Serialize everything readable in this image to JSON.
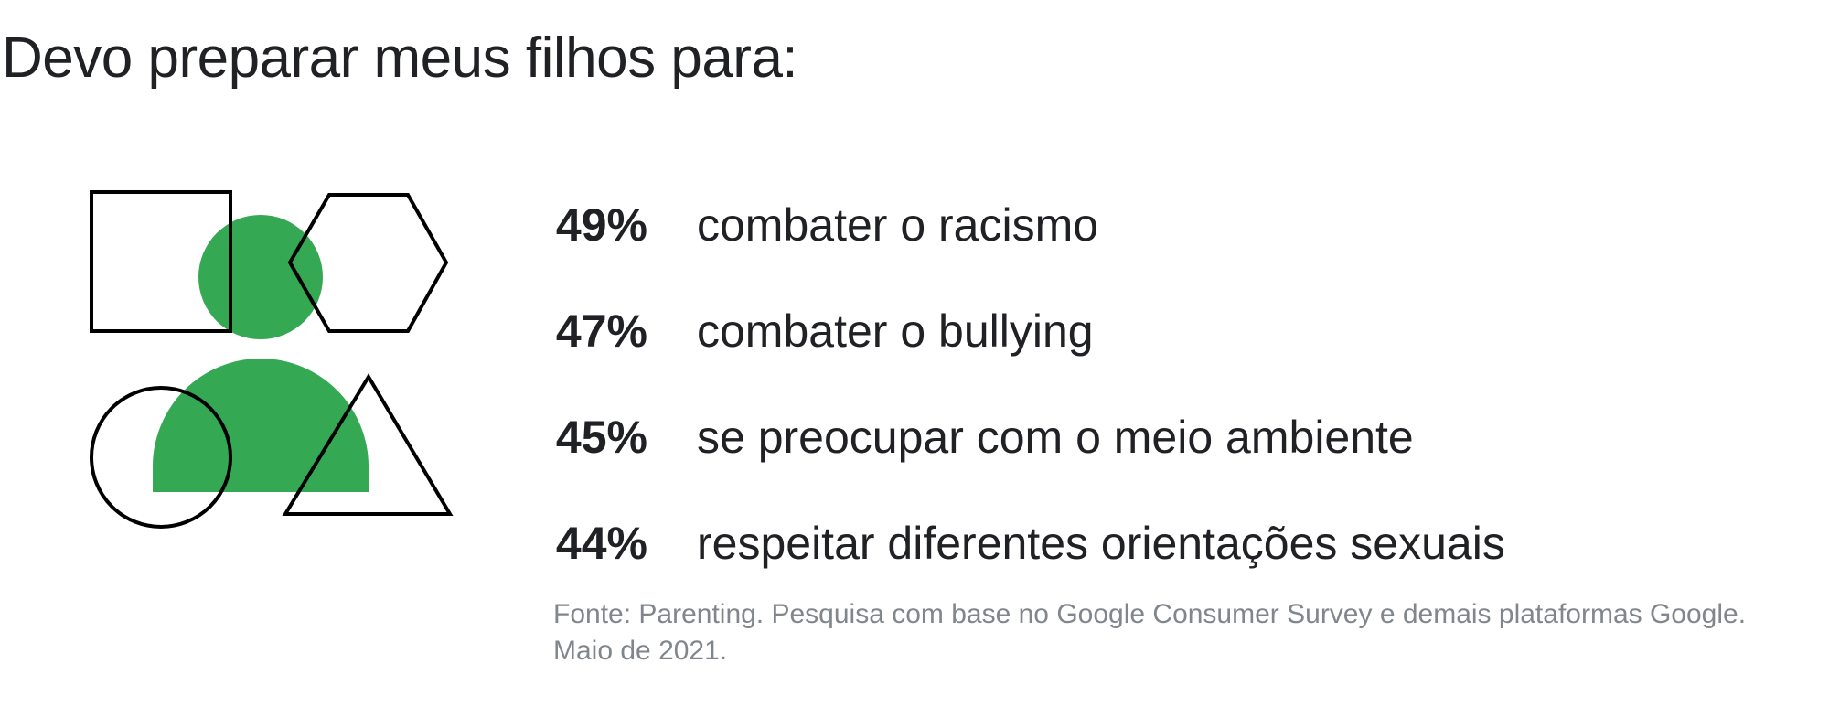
{
  "title": "Devo preparar meus filhos para:",
  "accent_color": "#34a853",
  "stroke_color": "#000000",
  "illustration": {
    "icons": [
      "square-outline-icon",
      "hexagon-outline-icon",
      "person-silhouette-icon",
      "circle-outline-icon",
      "triangle-outline-icon"
    ]
  },
  "stats": [
    {
      "value": "49%",
      "label": "combater o racismo"
    },
    {
      "value": "47%",
      "label": "combater o bullying"
    },
    {
      "value": "45%",
      "label": "se preocupar com o meio ambiente"
    },
    {
      "value": "44%",
      "label": "respeitar diferentes orientações sexuais"
    }
  ],
  "source": "Fonte: Parenting. Pesquisa com base no Google Consumer Survey e demais plataformas Google. Maio de 2021."
}
